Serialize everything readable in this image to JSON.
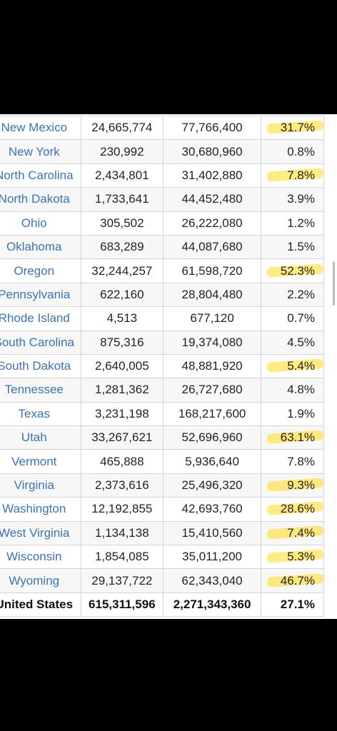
{
  "table": {
    "rows": [
      {
        "state": "New Mexico",
        "a": "24,665,774",
        "b": "77,766,400",
        "pct": "31.7%",
        "highlight": true
      },
      {
        "state": "New York",
        "a": "230,992",
        "b": "30,680,960",
        "pct": "0.8%",
        "highlight": false
      },
      {
        "state": "North Carolina",
        "a": "2,434,801",
        "b": "31,402,880",
        "pct": "7.8%",
        "highlight": true
      },
      {
        "state": "North Dakota",
        "a": "1,733,641",
        "b": "44,452,480",
        "pct": "3.9%",
        "highlight": false
      },
      {
        "state": "Ohio",
        "a": "305,502",
        "b": "26,222,080",
        "pct": "1.2%",
        "highlight": false
      },
      {
        "state": "Oklahoma",
        "a": "683,289",
        "b": "44,087,680",
        "pct": "1.5%",
        "highlight": false
      },
      {
        "state": "Oregon",
        "a": "32,244,257",
        "b": "61,598,720",
        "pct": "52.3%",
        "highlight": true
      },
      {
        "state": "Pennsylvania",
        "a": "622,160",
        "b": "28,804,480",
        "pct": "2.2%",
        "highlight": false
      },
      {
        "state": "Rhode Island",
        "a": "4,513",
        "b": "677,120",
        "pct": "0.7%",
        "highlight": false
      },
      {
        "state": "South Carolina",
        "a": "875,316",
        "b": "19,374,080",
        "pct": "4.5%",
        "highlight": false
      },
      {
        "state": "South Dakota",
        "a": "2,640,005",
        "b": "48,881,920",
        "pct": "5.4%",
        "highlight": true
      },
      {
        "state": "Tennessee",
        "a": "1,281,362",
        "b": "26,727,680",
        "pct": "4.8%",
        "highlight": false
      },
      {
        "state": "Texas",
        "a": "3,231,198",
        "b": "168,217,600",
        "pct": "1.9%",
        "highlight": false
      },
      {
        "state": "Utah",
        "a": "33,267,621",
        "b": "52,696,960",
        "pct": "63.1%",
        "highlight": true
      },
      {
        "state": "Vermont",
        "a": "465,888",
        "b": "5,936,640",
        "pct": "7.8%",
        "highlight": false
      },
      {
        "state": "Virginia",
        "a": "2,373,616",
        "b": "25,496,320",
        "pct": "9.3%",
        "highlight": true
      },
      {
        "state": "Washington",
        "a": "12,192,855",
        "b": "42,693,760",
        "pct": "28.6%",
        "highlight": true
      },
      {
        "state": "West Virginia",
        "a": "1,134,138",
        "b": "15,410,560",
        "pct": "7.4%",
        "highlight": true
      },
      {
        "state": "Wisconsin",
        "a": "1,854,085",
        "b": "35,011,200",
        "pct": "5.3%",
        "highlight": true
      },
      {
        "state": "Wyoming",
        "a": "29,137,722",
        "b": "62,343,040",
        "pct": "46.7%",
        "highlight": true
      }
    ],
    "total": {
      "state": "United States",
      "a": "615,311,596",
      "b": "2,271,343,360",
      "pct": "27.1%"
    }
  },
  "colors": {
    "link_blue": "#3a73b8",
    "highlighter": "#ffe03c"
  }
}
